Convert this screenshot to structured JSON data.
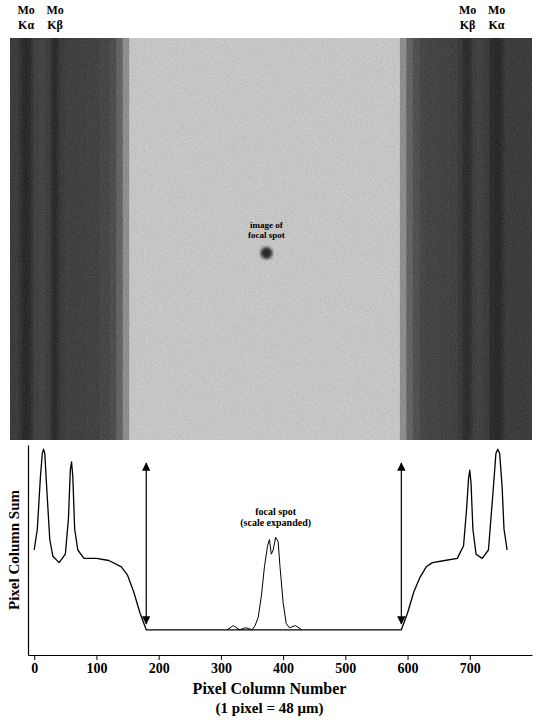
{
  "chart_data": {
    "type": "line",
    "ylabel": "Pixel Column Sum",
    "xlabel": [
      "Pixel Column Number",
      "(1 pixel = 48 μm)"
    ],
    "annotations": [
      [
        "Mo",
        "Kα"
      ],
      [
        "Mo",
        "Kβ"
      ],
      [
        "Mo",
        "Kβ"
      ],
      [
        "Mo",
        "Kα"
      ],
      [
        "image of",
        "focal spot"
      ],
      [
        "focal spot",
        "(scale expanded)"
      ]
    ],
    "xlim": [
      -10,
      800
    ],
    "xticks": [
      0,
      100,
      200,
      300,
      400,
      500,
      600,
      700
    ],
    "ylim": [
      0,
      100
    ],
    "tick_labels": "x",
    "series": [
      {
        "color": "#000000",
        "x": [
          0,
          5,
          10,
          13,
          15,
          17,
          20,
          25,
          30,
          40,
          50,
          55,
          58,
          60,
          62,
          65,
          70,
          80,
          100,
          120,
          140,
          150,
          160,
          170,
          180,
          190,
          200,
          300,
          400,
          500,
          580,
          590,
          600,
          610,
          620,
          630,
          640,
          660,
          680,
          690,
          695,
          698,
          700,
          702,
          705,
          710,
          720,
          730,
          738,
          742,
          745,
          748,
          752,
          755,
          760
        ],
        "values": [
          50,
          60,
          85,
          96,
          98,
          96,
          80,
          55,
          47,
          44,
          48,
          65,
          88,
          92,
          85,
          60,
          50,
          46,
          46,
          45,
          42,
          38,
          30,
          20,
          12,
          12,
          12,
          12,
          12,
          12,
          12,
          12,
          20,
          30,
          37,
          42,
          44,
          45,
          46,
          52,
          70,
          84,
          88,
          82,
          60,
          48,
          46,
          50,
          80,
          96,
          98,
          96,
          80,
          60,
          50
        ]
      },
      {
        "color": "#000000",
        "x": [
          310,
          320,
          330,
          340,
          350,
          355,
          360,
          365,
          370,
          375,
          378,
          381,
          384,
          388,
          392,
          395,
          400,
          405,
          410,
          420,
          430
        ],
        "values": [
          12,
          14,
          12,
          13,
          12,
          14,
          18,
          28,
          42,
          52,
          55,
          48,
          50,
          56,
          54,
          42,
          25,
          15,
          13,
          14,
          12
        ]
      }
    ]
  }
}
